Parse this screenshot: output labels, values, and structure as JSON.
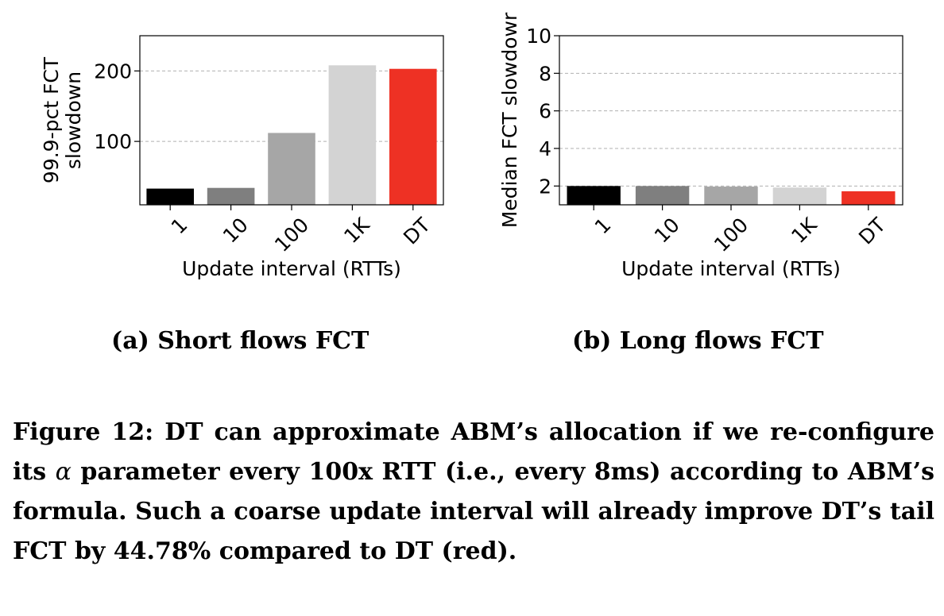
{
  "chart_data": [
    {
      "type": "bar",
      "subcaption": "(a) Short flows FCT",
      "ylabel": [
        "99.9-pct FCT",
        "slowdown"
      ],
      "xlabel": "Update interval (RTTs)",
      "categories": [
        "1",
        "10",
        "100",
        "1K",
        "DT"
      ],
      "values": [
        33,
        34,
        112,
        208,
        203
      ],
      "ylim": [
        10,
        250
      ],
      "yticks": [
        100,
        200
      ],
      "colors": [
        "#000000",
        "#7f7f7f",
        "#a6a6a6",
        "#d3d3d3",
        "#ee3124"
      ],
      "grid": true
    },
    {
      "type": "bar",
      "subcaption": "(b) Long flows FCT",
      "ylabel": [
        "Median FCT slowdowr"
      ],
      "xlabel": "Update interval (RTTs)",
      "categories": [
        "1",
        "10",
        "100",
        "1K",
        "DT"
      ],
      "values": [
        2.0,
        2.0,
        1.97,
        1.92,
        1.72
      ],
      "ylim": [
        1.0,
        10.0
      ],
      "yticks": [
        2,
        4,
        6,
        8,
        10
      ],
      "colors": [
        "#000000",
        "#7f7f7f",
        "#a6a6a6",
        "#d3d3d3",
        "#ee3124"
      ],
      "grid": true
    }
  ],
  "caption": {
    "part1": "Figure 12: DT can approximate ABM’s allocation if we re-configure its ",
    "alpha": "α",
    "part2": " parameter every 100x RTT (i.e., every 8ms) according to ABM’s formula. Such a coarse update interval will already improve DT’s tail FCT by 44.78% compared to DT (red)."
  }
}
